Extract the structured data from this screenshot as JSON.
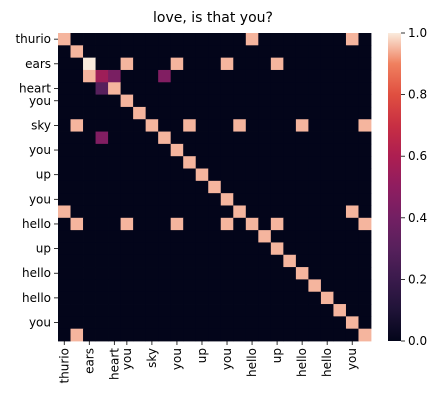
{
  "chart_data": {
    "type": "heatmap",
    "title": "love, is that you?",
    "row_labels": [
      "thurio",
      "ears",
      "heart",
      "you",
      "sky",
      "you",
      "up",
      "you",
      "hello",
      "up",
      "hello",
      "hello",
      "you"
    ],
    "col_labels": [
      "thurio",
      "ears",
      "heart",
      "you",
      "sky",
      "you",
      "up",
      "you",
      "hello",
      "up",
      "hello",
      "hello",
      "you"
    ],
    "tokens": [
      "thurio",
      "thurio",
      "ears",
      "ears",
      "heart",
      "you",
      "you",
      "sky",
      "sky",
      "you",
      "you",
      "up",
      "up",
      "you",
      "you",
      "hello",
      "hello",
      "up",
      "up",
      "hello",
      "hello",
      "hello",
      "hello",
      "you",
      "you"
    ],
    "visible_row_token_index": [
      0,
      2,
      4,
      5,
      7,
      9,
      11,
      13,
      15,
      17,
      19,
      21,
      23
    ],
    "visible_col_token_index": [
      0,
      2,
      4,
      5,
      7,
      9,
      11,
      13,
      15,
      17,
      19,
      21,
      23
    ],
    "matrix": [
      [
        0.95,
        0,
        0,
        0,
        0,
        0,
        0,
        0,
        0,
        0,
        0,
        0,
        0,
        0,
        0,
        0.95,
        0,
        0,
        0,
        0,
        0,
        0,
        0,
        0.95,
        0
      ],
      [
        0,
        0.95,
        0,
        0,
        0,
        0,
        0,
        0,
        0,
        0,
        0,
        0,
        0,
        0,
        0,
        0,
        0,
        0,
        0,
        0,
        0,
        0,
        0,
        0,
        0
      ],
      [
        0,
        0,
        1,
        0,
        0,
        0.95,
        0,
        0,
        0,
        0.95,
        0,
        0,
        0,
        0.95,
        0,
        0,
        0,
        0.95,
        0,
        0,
        0,
        0,
        0,
        0,
        0
      ],
      [
        0,
        0,
        0.95,
        0.55,
        0.42,
        0,
        0,
        0,
        0.45,
        0,
        0,
        0,
        0,
        0,
        0,
        0,
        0,
        0,
        0,
        0,
        0,
        0,
        0,
        0,
        0
      ],
      [
        0,
        0,
        0,
        0.3,
        0.95,
        0,
        0,
        0,
        0,
        0,
        0,
        0,
        0,
        0,
        0,
        0,
        0,
        0,
        0,
        0,
        0,
        0,
        0,
        0,
        0
      ],
      [
        0,
        0,
        0,
        0,
        0,
        0.95,
        0,
        0,
        0,
        0,
        0,
        0,
        0,
        0,
        0,
        0,
        0,
        0,
        0,
        0,
        0,
        0,
        0,
        0,
        0
      ],
      [
        0,
        0,
        0,
        0,
        0,
        0,
        0.95,
        0,
        0,
        0,
        0,
        0,
        0,
        0,
        0,
        0,
        0,
        0,
        0,
        0,
        0,
        0,
        0,
        0,
        0
      ],
      [
        0,
        0.95,
        0,
        0,
        0,
        0,
        0,
        0.95,
        0,
        0,
        0.95,
        0,
        0,
        0,
        0.95,
        0,
        0,
        0,
        0,
        0.95,
        0,
        0,
        0,
        0,
        0.95
      ],
      [
        0,
        0,
        0,
        0.45,
        0,
        0,
        0,
        0,
        0.95,
        0,
        0,
        0,
        0,
        0,
        0,
        0,
        0,
        0,
        0,
        0,
        0,
        0,
        0,
        0,
        0
      ],
      [
        0,
        0,
        0,
        0,
        0,
        0,
        0,
        0,
        0,
        0.95,
        0,
        0,
        0,
        0,
        0,
        0,
        0,
        0,
        0,
        0,
        0,
        0,
        0,
        0,
        0
      ],
      [
        0,
        0,
        0,
        0,
        0,
        0,
        0,
        0,
        0,
        0,
        0.95,
        0,
        0,
        0,
        0,
        0,
        0,
        0,
        0,
        0,
        0,
        0,
        0,
        0,
        0
      ],
      [
        0,
        0,
        0,
        0,
        0,
        0,
        0,
        0,
        0,
        0,
        0,
        0.95,
        0,
        0,
        0,
        0,
        0,
        0,
        0,
        0,
        0,
        0,
        0,
        0,
        0
      ],
      [
        0,
        0,
        0,
        0,
        0,
        0,
        0,
        0,
        0,
        0,
        0,
        0,
        0.95,
        0,
        0,
        0,
        0,
        0,
        0,
        0,
        0,
        0,
        0,
        0,
        0
      ],
      [
        0,
        0,
        0,
        0,
        0,
        0,
        0,
        0,
        0,
        0,
        0,
        0,
        0,
        0.95,
        0,
        0,
        0,
        0,
        0,
        0,
        0,
        0,
        0,
        0,
        0
      ],
      [
        0.95,
        0,
        0,
        0,
        0,
        0,
        0,
        0,
        0,
        0,
        0,
        0,
        0,
        0,
        0.95,
        0,
        0,
        0,
        0,
        0,
        0,
        0,
        0,
        0.95,
        0
      ],
      [
        0,
        0.95,
        0,
        0,
        0,
        0.95,
        0,
        0,
        0,
        0.95,
        0,
        0,
        0,
        0.95,
        0,
        0.95,
        0,
        0.95,
        0,
        0,
        0,
        0,
        0,
        0,
        0.95
      ],
      [
        0,
        0,
        0,
        0,
        0,
        0,
        0,
        0,
        0,
        0,
        0,
        0,
        0,
        0,
        0,
        0,
        0.95,
        0,
        0,
        0,
        0,
        0,
        0,
        0,
        0
      ],
      [
        0,
        0,
        0,
        0,
        0,
        0,
        0,
        0,
        0,
        0,
        0,
        0,
        0,
        0,
        0,
        0,
        0,
        0.95,
        0,
        0,
        0,
        0,
        0,
        0,
        0
      ],
      [
        0,
        0,
        0,
        0,
        0,
        0,
        0,
        0,
        0,
        0,
        0,
        0,
        0,
        0,
        0,
        0,
        0,
        0,
        0.95,
        0,
        0,
        0,
        0,
        0,
        0
      ],
      [
        0,
        0,
        0,
        0,
        0,
        0,
        0,
        0,
        0,
        0,
        0,
        0,
        0,
        0,
        0,
        0,
        0,
        0,
        0,
        0.95,
        0,
        0,
        0,
        0,
        0
      ],
      [
        0,
        0,
        0,
        0,
        0,
        0,
        0,
        0,
        0,
        0,
        0,
        0,
        0,
        0,
        0,
        0,
        0,
        0,
        0,
        0,
        0.95,
        0,
        0,
        0,
        0
      ],
      [
        0,
        0,
        0,
        0,
        0,
        0,
        0,
        0,
        0,
        0,
        0,
        0,
        0,
        0,
        0,
        0,
        0,
        0,
        0,
        0,
        0,
        0.95,
        0,
        0,
        0
      ],
      [
        0,
        0,
        0,
        0,
        0,
        0,
        0,
        0,
        0,
        0,
        0,
        0,
        0,
        0,
        0,
        0,
        0,
        0,
        0,
        0,
        0,
        0,
        0.95,
        0,
        0
      ],
      [
        0,
        0,
        0,
        0,
        0,
        0,
        0,
        0,
        0,
        0,
        0,
        0,
        0,
        0,
        0,
        0,
        0,
        0,
        0,
        0,
        0,
        0,
        0,
        0.95,
        0
      ],
      [
        0,
        0.95,
        0,
        0,
        0,
        0,
        0,
        0,
        0,
        0,
        0,
        0,
        0,
        0,
        0,
        0,
        0,
        0,
        0,
        0,
        0,
        0,
        0,
        0,
        0.95
      ]
    ],
    "colorbar": {
      "vmin": 0.0,
      "vmax": 1.0,
      "ticks": [
        0.0,
        0.2,
        0.4,
        0.6,
        0.8,
        1.0
      ],
      "tick_labels": [
        "0.0",
        "0.2",
        "0.4",
        "0.6",
        "0.8",
        "1.0"
      ],
      "colormap": "rocket"
    }
  }
}
